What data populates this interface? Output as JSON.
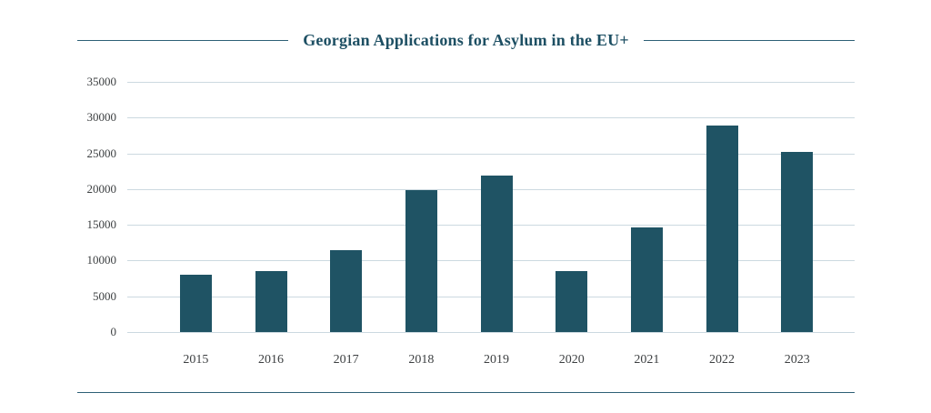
{
  "page": {
    "title": "Georgian Applications for Asylum in the EU+"
  },
  "colors": {
    "bar": "#1f5364",
    "title_text": "#1d4f63",
    "rule_line": "#2e6076",
    "gridline": "#ccd9e0",
    "tick_text": "#3d4042",
    "background": "#ffffff"
  },
  "chart_data": {
    "type": "bar",
    "title": "Georgian Applications for Asylum in the EU+",
    "categories": [
      "2015",
      "2016",
      "2017",
      "2018",
      "2019",
      "2020",
      "2021",
      "2022",
      "2023"
    ],
    "values": [
      8000,
      8500,
      11500,
      19900,
      21900,
      8500,
      14600,
      28900,
      25200
    ],
    "xlabel": "",
    "ylabel": "",
    "ylim": [
      0,
      35000
    ],
    "yticks": [
      0,
      5000,
      10000,
      15000,
      20000,
      25000,
      30000,
      35000
    ],
    "grid": "horizontal",
    "legend": "none"
  }
}
